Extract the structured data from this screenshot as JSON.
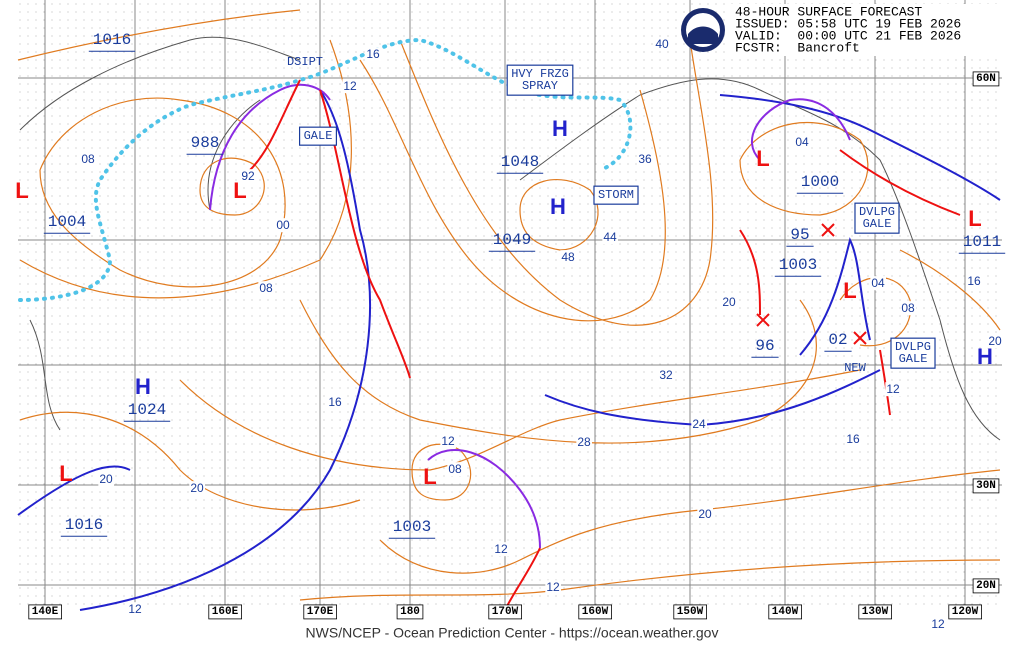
{
  "header": {
    "title": "48-HOUR SURFACE FORECAST",
    "issued": "ISSUED: 05:58 UTC 19 FEB 2026",
    "valid": "VALID:  00:00 UTC 21 FEB 2026",
    "forecaster": "FCSTR:  Bancroft"
  },
  "latitude_labels": [
    "60N",
    "30N",
    "20N"
  ],
  "longitude_labels": [
    "140E",
    "160E",
    "170E",
    "180",
    "170W",
    "160W",
    "150W",
    "140W",
    "130W",
    "120W"
  ],
  "center_symbols": [
    "H",
    "H",
    "H",
    "H",
    "L",
    "L",
    "L",
    "L",
    "L",
    "L",
    "L"
  ],
  "pressure_labels": [
    "1016",
    "988",
    "1004",
    "1048",
    "1049",
    "1000",
    "95",
    "1003",
    "96",
    "02",
    "1011",
    "1024",
    "1016",
    "1003"
  ],
  "isobar_labels": [
    "08",
    "92",
    "00",
    "08",
    "12",
    "16",
    "40",
    "36",
    "44",
    "48",
    "04",
    "20",
    "04",
    "08",
    "16",
    "20",
    "12",
    "16",
    "32",
    "28",
    "24",
    "20",
    "16",
    "20",
    "20",
    "12",
    "08",
    "12",
    "12",
    "12",
    "12"
  ],
  "warnings": [
    {
      "lines": [
        "DSIPT"
      ]
    },
    {
      "lines": [
        "GALE"
      ]
    },
    {
      "lines": [
        "HVY FRZG",
        "SPRAY"
      ]
    },
    {
      "lines": [
        "STORM"
      ]
    },
    {
      "lines": [
        "DVLPG",
        "GALE"
      ]
    },
    {
      "lines": [
        "DVLPG",
        "GALE"
      ]
    },
    {
      "lines": [
        "NEW"
      ]
    }
  ],
  "footer": "NWS/NCEP - Ocean Prediction Center - https://ocean.weather.gov"
}
